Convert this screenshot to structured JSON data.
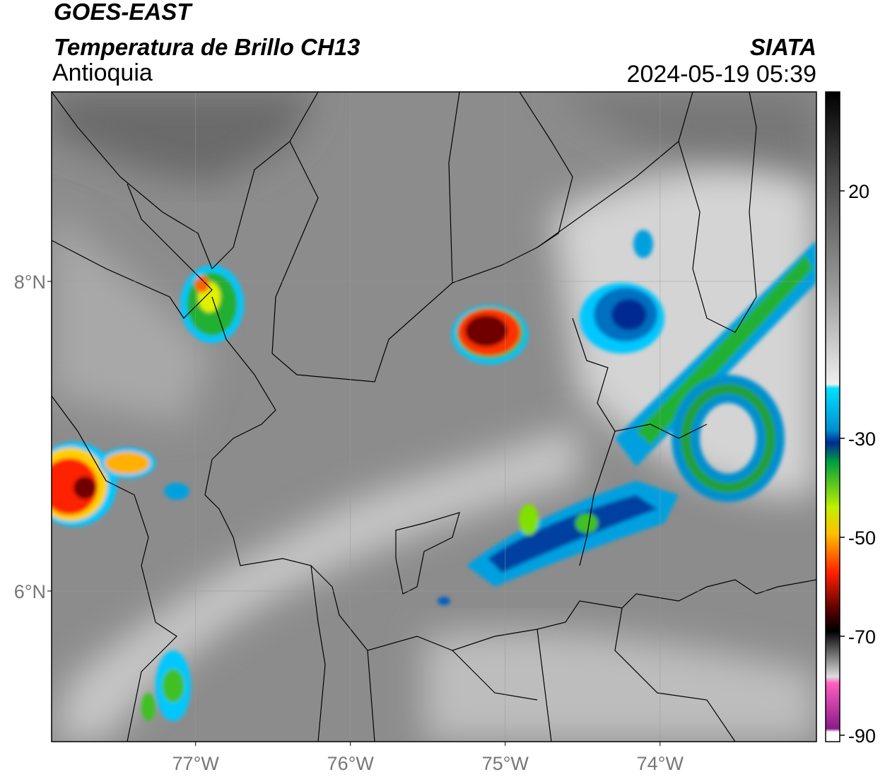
{
  "header": {
    "title": "GOES-EAST",
    "subtitle": "Temperatura de Brillo CH13",
    "region": "Antioquia",
    "source": "SIATA",
    "timestamp": "2024-05-19 05:39"
  },
  "map": {
    "lonlim": [
      -77.93,
      -72.99
    ],
    "latlim": [
      5.027,
      9.224
    ],
    "lon_ticks": [
      {
        "value": -77,
        "label": "77°W"
      },
      {
        "value": -76,
        "label": "76°W"
      },
      {
        "value": -75,
        "label": "75°W"
      },
      {
        "value": -74,
        "label": "74°W"
      }
    ],
    "lat_ticks": [
      {
        "value": 8,
        "label": "8°N"
      },
      {
        "value": 6,
        "label": "6°N"
      }
    ]
  },
  "colorbar": {
    "lim": [
      -91.3,
      40
    ],
    "ticks": [
      20,
      -30,
      -50,
      -70,
      -90
    ]
  }
}
